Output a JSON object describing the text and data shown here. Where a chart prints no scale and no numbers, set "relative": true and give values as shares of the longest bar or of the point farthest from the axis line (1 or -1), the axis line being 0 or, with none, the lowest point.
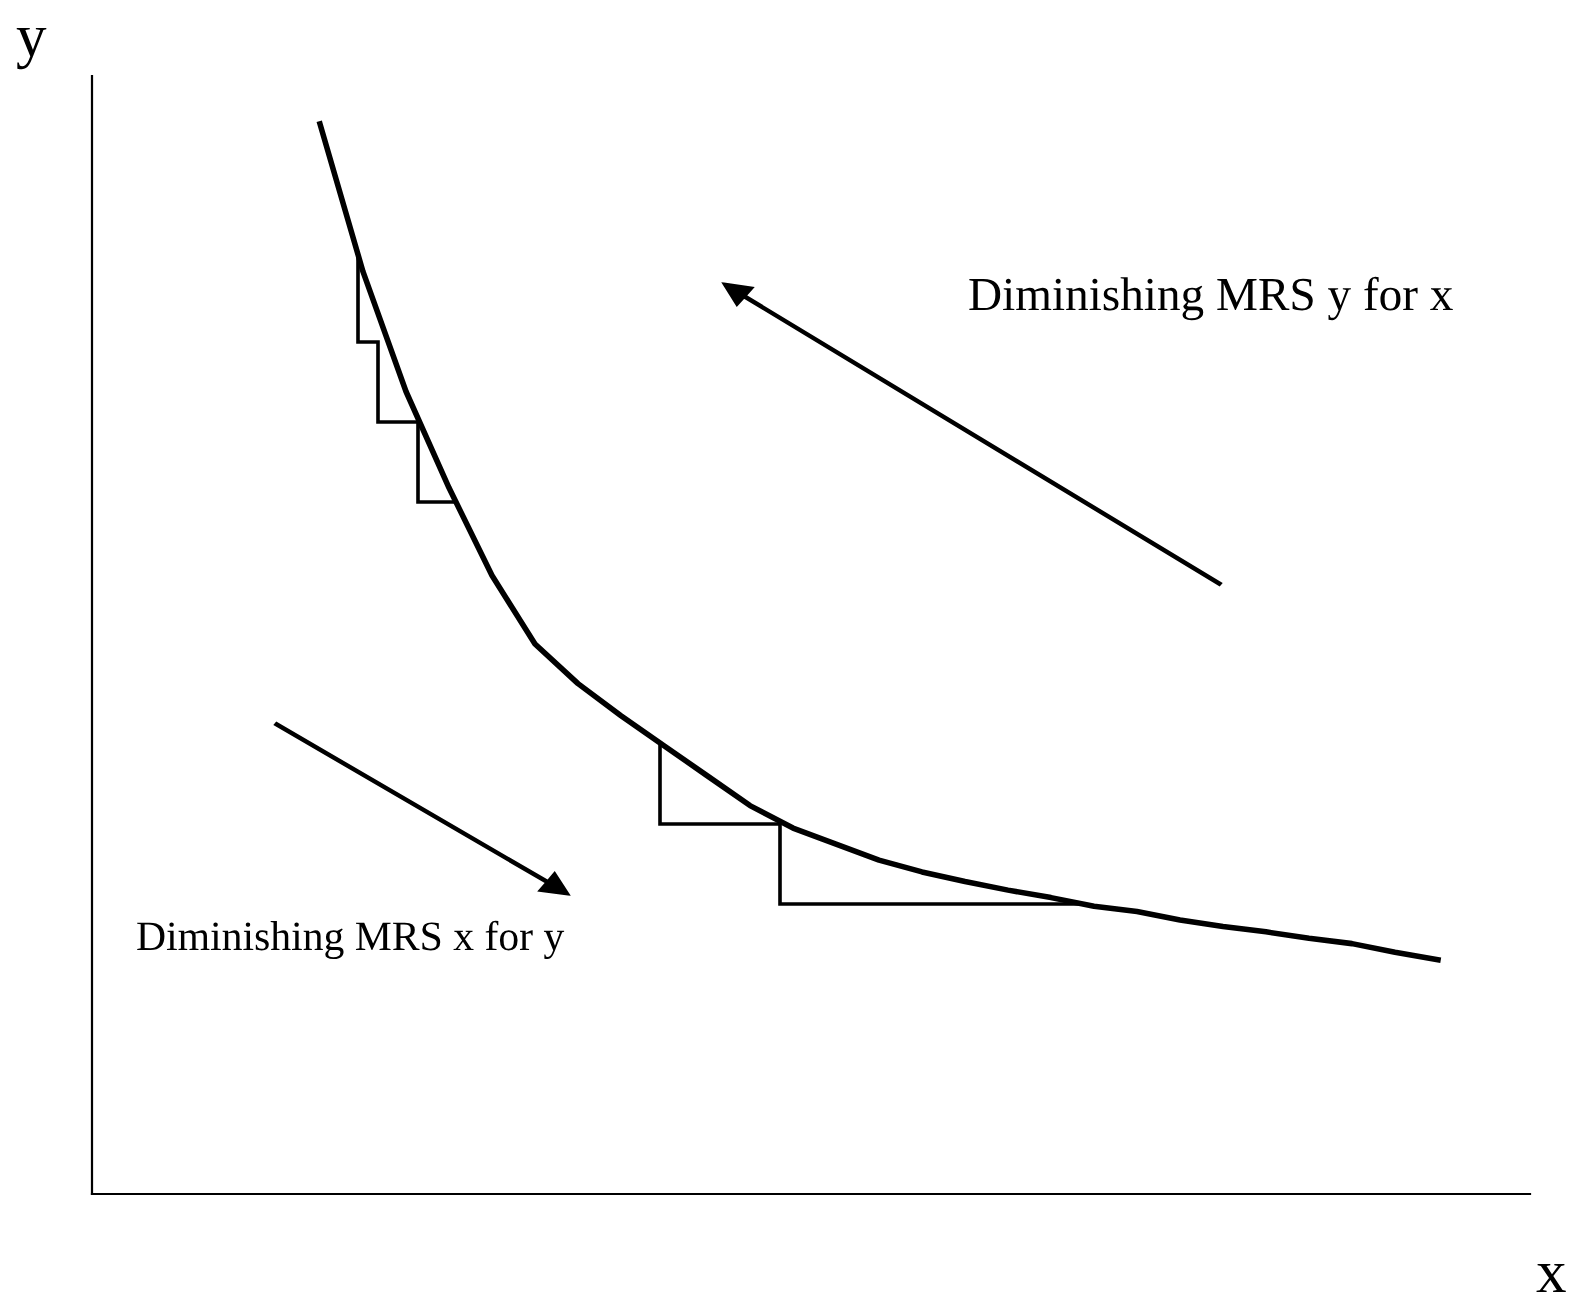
{
  "chart_data": {
    "type": "line",
    "relative": true,
    "xlabel": "x",
    "ylabel": "y",
    "tick_labels": false,
    "legend": false,
    "marker": "none",
    "line_style": "solid",
    "annotations": [
      "Diminishing MRS y for x",
      "Diminishing MRS x for y"
    ],
    "categories": [
      null,
      null,
      null,
      null,
      null,
      null,
      null,
      null,
      null,
      null,
      null,
      null,
      null,
      null,
      null,
      null,
      null,
      null,
      null,
      null,
      null,
      null,
      null,
      null,
      null,
      null,
      null
    ],
    "series": [
      {
        "color": "#000000",
        "values": [
          1.0,
          0.862,
          0.75,
          0.66,
          0.578,
          0.514,
          0.477,
          0.447,
          0.419,
          0.391,
          0.363,
          0.342,
          0.327,
          0.312,
          0.301,
          0.292,
          0.284,
          0.277,
          0.269,
          0.264,
          0.256,
          0.25,
          0.245,
          0.239,
          0.234,
          0.226,
          0.219
        ]
      }
    ]
  }
}
